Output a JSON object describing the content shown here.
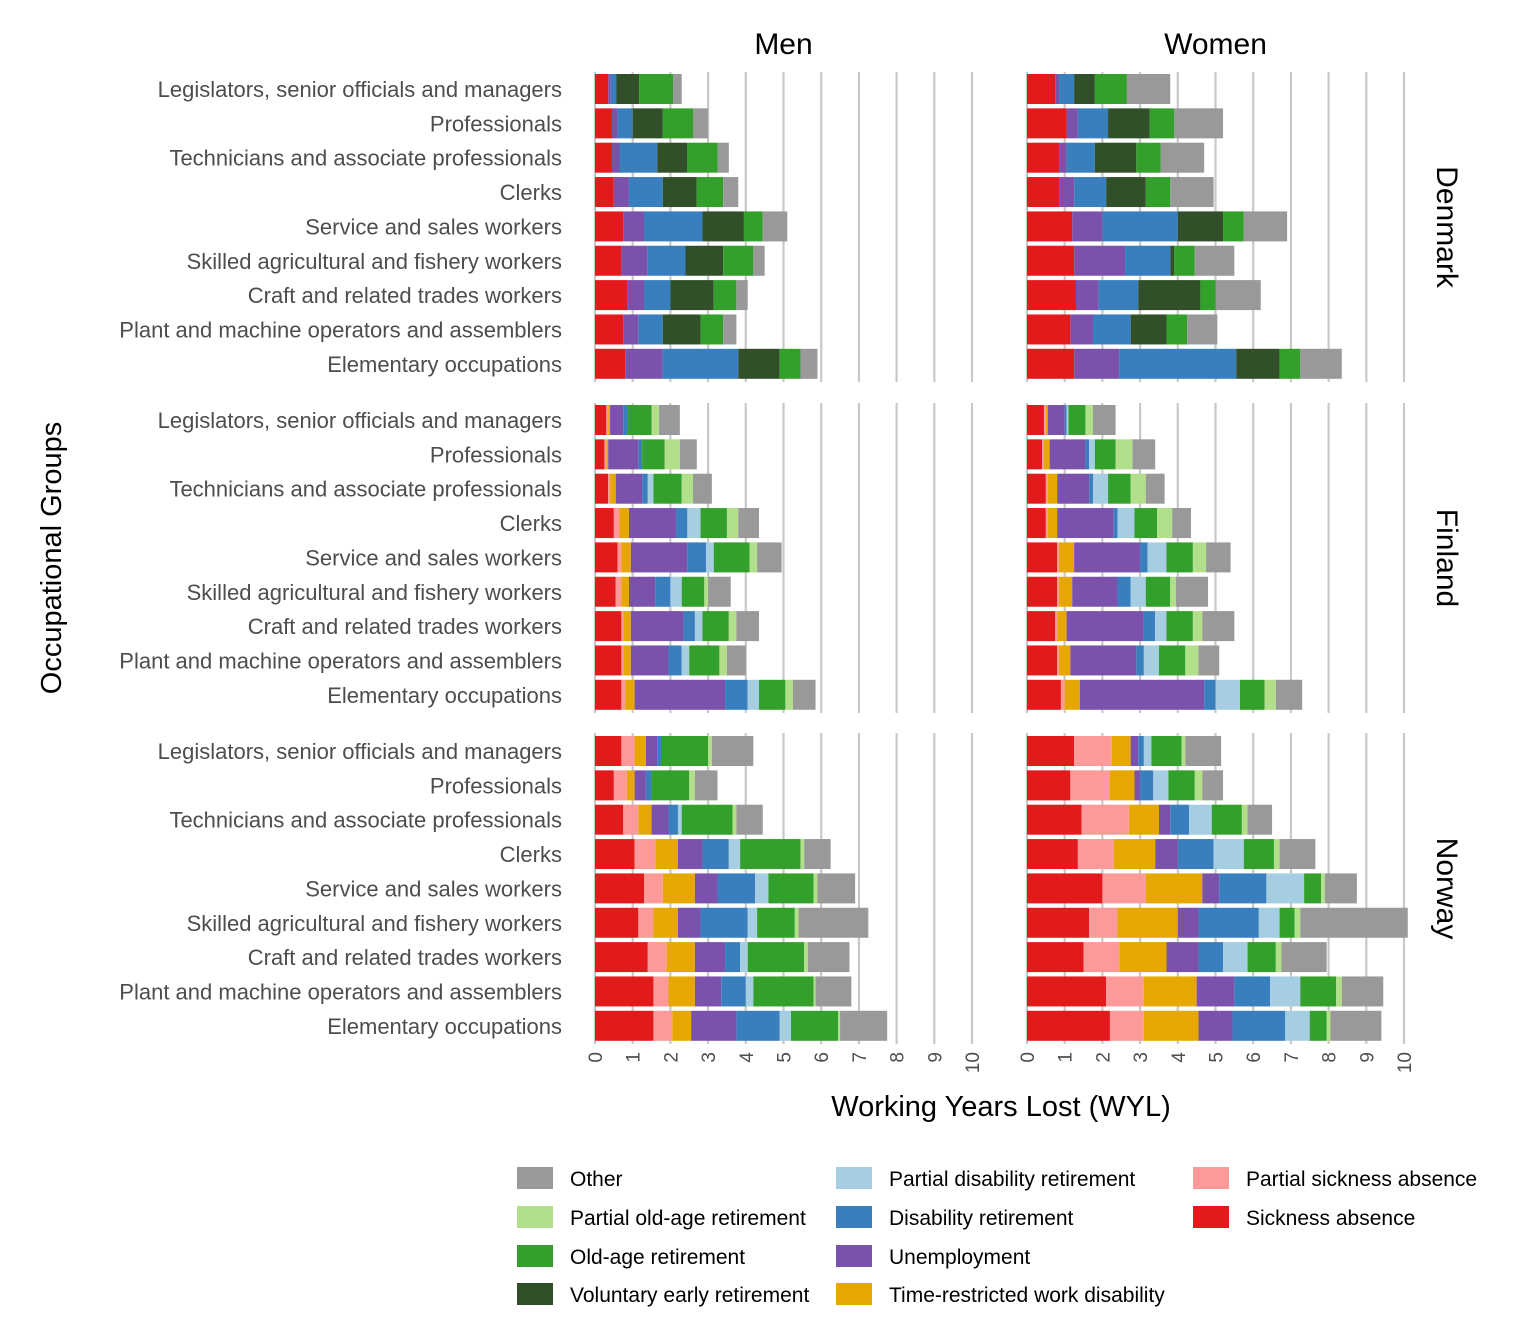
{
  "chart_data": {
    "type": "bar",
    "orientation": "horizontal",
    "stacked": true,
    "xlabel": "Working Years Lost (WYL)",
    "ylabel": "Occupational Groups",
    "xlim": [
      0,
      10
    ],
    "x_ticks": [
      0,
      1,
      2,
      3,
      4,
      5,
      6,
      7,
      8,
      9,
      10
    ],
    "facet_columns": [
      "Men",
      "Women"
    ],
    "facet_rows": [
      "Denmark",
      "Finland",
      "Norway"
    ],
    "categories": [
      "Legislators, senior officials and managers",
      "Professionals",
      "Technicians and associate professionals",
      "Clerks",
      "Service and sales workers",
      "Skilled agricultural and fishery workers",
      "Craft and related trades workers",
      "Plant and machine operators and assemblers",
      "Elementary occupations"
    ],
    "components": [
      {
        "key": "sick",
        "name": "Sickness absence",
        "color": "#e31a1c"
      },
      {
        "key": "psick",
        "name": "Partial sickness absence",
        "color": "#fb9a99"
      },
      {
        "key": "trwd",
        "name": "Time-restricted work disability",
        "color": "#e6a800"
      },
      {
        "key": "unemp",
        "name": "Unemployment",
        "color": "#7b52ab"
      },
      {
        "key": "dis",
        "name": "Disability retirement",
        "color": "#3a7fbd"
      },
      {
        "key": "pdis",
        "name": "Partial disability retirement",
        "color": "#a6cee3"
      },
      {
        "key": "vol",
        "name": "Voluntary early retirement",
        "color": "#31502a"
      },
      {
        "key": "old",
        "name": "Old-age retirement",
        "color": "#33a02c"
      },
      {
        "key": "pold",
        "name": "Partial old-age retirement",
        "color": "#b2df8a"
      },
      {
        "key": "other",
        "name": "Other",
        "color": "#999999"
      }
    ],
    "component_order": [
      "sick",
      "psick",
      "trwd",
      "unemp",
      "dis",
      "pdis",
      "vol",
      "old",
      "pold",
      "other"
    ],
    "panels": [
      {
        "country": "Denmark",
        "sex": "Men",
        "rows": [
          [
            0.35,
            0,
            0,
            0.07,
            0.15,
            0,
            0.6,
            0.9,
            0,
            0.23
          ],
          [
            0.45,
            0,
            0,
            0.15,
            0.4,
            0,
            0.8,
            0.8,
            0,
            0.4
          ],
          [
            0.45,
            0,
            0,
            0.2,
            1.0,
            0,
            0.8,
            0.8,
            0,
            0.3
          ],
          [
            0.5,
            0,
            0,
            0.4,
            0.9,
            0,
            0.9,
            0.7,
            0,
            0.4
          ],
          [
            0.75,
            0,
            0,
            0.55,
            1.55,
            0,
            1.1,
            0.5,
            0,
            0.65
          ],
          [
            0.7,
            0,
            0,
            0.7,
            1.0,
            0,
            1.0,
            0.8,
            0,
            0.3
          ],
          [
            0.85,
            0,
            0,
            0.45,
            0.7,
            0,
            1.15,
            0.6,
            0,
            0.3
          ],
          [
            0.75,
            0,
            0,
            0.4,
            0.65,
            0,
            1.0,
            0.6,
            0,
            0.35
          ],
          [
            0.8,
            0,
            0,
            1.0,
            2.0,
            0,
            1.1,
            0.55,
            0,
            0.45
          ]
        ]
      },
      {
        "country": "Denmark",
        "sex": "Women",
        "rows": [
          [
            0.75,
            0,
            0,
            0.1,
            0.4,
            0,
            0.55,
            0.85,
            0,
            1.15
          ],
          [
            1.05,
            0,
            0,
            0.3,
            0.8,
            0,
            1.1,
            0.65,
            0,
            1.3
          ],
          [
            0.85,
            0,
            0,
            0.2,
            0.75,
            0,
            1.1,
            0.65,
            0,
            1.15
          ],
          [
            0.85,
            0,
            0,
            0.4,
            0.85,
            0,
            1.05,
            0.65,
            0,
            1.15
          ],
          [
            1.2,
            0,
            0,
            0.8,
            2.0,
            0,
            1.2,
            0.55,
            0,
            1.15
          ],
          [
            1.25,
            0,
            0,
            1.35,
            1.2,
            0,
            0.1,
            0.55,
            0,
            1.05
          ],
          [
            1.3,
            0,
            0,
            0.6,
            1.05,
            0,
            1.65,
            0.4,
            0,
            1.2
          ],
          [
            1.15,
            0,
            0,
            0.6,
            1.0,
            0,
            0.95,
            0.55,
            0,
            0.8
          ],
          [
            1.25,
            0,
            0,
            1.2,
            3.1,
            0,
            1.15,
            0.55,
            0,
            1.1
          ]
        ]
      },
      {
        "country": "Finland",
        "sex": "Men",
        "rows": [
          [
            0.3,
            0.05,
            0.05,
            0.35,
            0.1,
            0,
            0,
            0.65,
            0.2,
            0.55
          ],
          [
            0.25,
            0.05,
            0.05,
            0.8,
            0.1,
            0,
            0,
            0.6,
            0.4,
            0.45
          ],
          [
            0.35,
            0.05,
            0.15,
            0.7,
            0.15,
            0.15,
            0,
            0.75,
            0.3,
            0.5
          ],
          [
            0.5,
            0.15,
            0.25,
            1.25,
            0.3,
            0.35,
            0,
            0.7,
            0.3,
            0.55
          ],
          [
            0.6,
            0.1,
            0.25,
            1.5,
            0.5,
            0.2,
            0,
            0.95,
            0.2,
            0.65
          ],
          [
            0.55,
            0.15,
            0.2,
            0.7,
            0.4,
            0.3,
            0,
            0.6,
            0.1,
            0.6
          ],
          [
            0.7,
            0.05,
            0.2,
            1.4,
            0.3,
            0.2,
            0,
            0.7,
            0.2,
            0.6
          ],
          [
            0.7,
            0.05,
            0.2,
            1.0,
            0.35,
            0.2,
            0,
            0.8,
            0.2,
            0.5
          ],
          [
            0.7,
            0.1,
            0.25,
            2.4,
            0.6,
            0.3,
            0,
            0.7,
            0.2,
            0.6
          ]
        ]
      },
      {
        "country": "Finland",
        "sex": "Women",
        "rows": [
          [
            0.45,
            0.05,
            0.05,
            0.45,
            0.05,
            0.05,
            0,
            0.45,
            0.2,
            0.6
          ],
          [
            0.4,
            0.05,
            0.15,
            0.95,
            0.1,
            0.15,
            0,
            0.55,
            0.45,
            0.6
          ],
          [
            0.5,
            0.05,
            0.25,
            0.85,
            0.1,
            0.4,
            0,
            0.6,
            0.4,
            0.5
          ],
          [
            0.5,
            0.05,
            0.25,
            1.5,
            0.1,
            0.45,
            0,
            0.6,
            0.4,
            0.5
          ],
          [
            0.8,
            0.05,
            0.4,
            1.75,
            0.2,
            0.5,
            0,
            0.7,
            0.35,
            0.65
          ],
          [
            0.8,
            0.05,
            0.35,
            1.2,
            0.35,
            0.4,
            0,
            0.65,
            0.15,
            0.85
          ],
          [
            0.75,
            0.05,
            0.25,
            2.05,
            0.3,
            0.3,
            0,
            0.7,
            0.25,
            0.85
          ],
          [
            0.8,
            0.05,
            0.3,
            1.75,
            0.2,
            0.4,
            0,
            0.7,
            0.35,
            0.55
          ],
          [
            0.9,
            0.1,
            0.4,
            3.3,
            0.3,
            0.65,
            0,
            0.65,
            0.3,
            0.7
          ]
        ]
      },
      {
        "country": "Norway",
        "sex": "Men",
        "rows": [
          [
            0.7,
            0.35,
            0.3,
            0.3,
            0.1,
            0,
            0,
            1.25,
            0.1,
            1.1
          ],
          [
            0.5,
            0.35,
            0.2,
            0.3,
            0.15,
            0,
            0,
            1.0,
            0.15,
            0.6
          ],
          [
            0.75,
            0.4,
            0.35,
            0.45,
            0.25,
            0.1,
            0,
            1.35,
            0.1,
            0.7
          ],
          [
            1.05,
            0.55,
            0.6,
            0.65,
            0.7,
            0.3,
            0,
            1.6,
            0.1,
            0.7
          ],
          [
            1.3,
            0.5,
            0.85,
            0.6,
            1.0,
            0.35,
            0,
            1.2,
            0.1,
            1.0
          ],
          [
            1.15,
            0.4,
            0.65,
            0.6,
            1.25,
            0.25,
            0,
            1.0,
            0.1,
            1.85
          ],
          [
            1.4,
            0.5,
            0.75,
            0.8,
            0.4,
            0.2,
            0,
            1.5,
            0.1,
            1.1
          ],
          [
            1.55,
            0.4,
            0.7,
            0.7,
            0.65,
            0.2,
            0,
            1.6,
            0.05,
            0.95
          ],
          [
            1.55,
            0.5,
            0.5,
            1.2,
            1.15,
            0.3,
            0,
            1.25,
            0.05,
            1.25
          ]
        ]
      },
      {
        "country": "Norway",
        "sex": "Women",
        "rows": [
          [
            1.25,
            1.0,
            0.5,
            0.2,
            0.15,
            0.2,
            0,
            0.8,
            0.1,
            0.95
          ],
          [
            1.15,
            1.05,
            0.65,
            0.15,
            0.35,
            0.4,
            0,
            0.7,
            0.2,
            0.55
          ],
          [
            1.45,
            1.25,
            0.8,
            0.3,
            0.5,
            0.6,
            0,
            0.8,
            0.15,
            0.65
          ],
          [
            1.35,
            0.95,
            1.1,
            0.6,
            0.95,
            0.8,
            0,
            0.8,
            0.15,
            0.95
          ],
          [
            2.0,
            1.15,
            1.5,
            0.45,
            1.25,
            1.0,
            0,
            0.45,
            0.1,
            0.85
          ],
          [
            1.65,
            0.75,
            1.6,
            0.55,
            1.6,
            0.55,
            0,
            0.4,
            0.15,
            2.85
          ],
          [
            1.5,
            0.95,
            1.25,
            0.85,
            0.65,
            0.65,
            0,
            0.75,
            0.15,
            1.2
          ],
          [
            2.1,
            1.0,
            1.4,
            1.0,
            0.95,
            0.8,
            0,
            0.95,
            0.15,
            1.1
          ],
          [
            2.2,
            0.9,
            1.45,
            0.9,
            1.4,
            0.65,
            0,
            0.45,
            0.1,
            1.35
          ]
        ]
      }
    ],
    "legend": {
      "columns": [
        [
          "other",
          "pold",
          "old",
          "vol"
        ],
        [
          "pdis",
          "dis",
          "unemp",
          "trwd"
        ],
        [
          "psick",
          "sick"
        ]
      ]
    }
  }
}
